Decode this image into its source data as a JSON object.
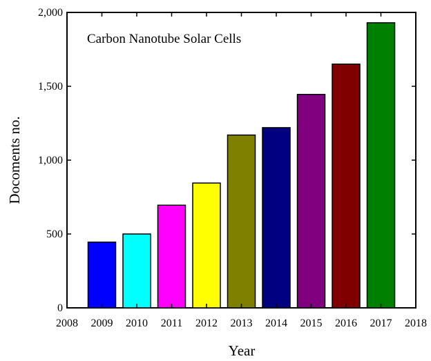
{
  "chart_data": {
    "type": "bar",
    "title": "Carbon Nanotube Solar Cells",
    "xlabel": "Year",
    "ylabel": "Docoments no.",
    "xlim": [
      2008,
      2018
    ],
    "ylim": [
      0,
      2000
    ],
    "x_ticks": [
      "2008",
      "2009",
      "2010",
      "2011",
      "2012",
      "2013",
      "2014",
      "2015",
      "2016",
      "2017",
      "2018"
    ],
    "y_ticks": [
      {
        "value": 0,
        "label": "0"
      },
      {
        "value": 500,
        "label": "500"
      },
      {
        "value": 1000,
        "label": "1,000"
      },
      {
        "value": 1500,
        "label": "1,500"
      },
      {
        "value": 2000,
        "label": "2,000"
      }
    ],
    "categories": [
      2009,
      2010,
      2011,
      2012,
      2013,
      2014,
      2015,
      2016,
      2017
    ],
    "values": [
      445,
      500,
      695,
      845,
      1170,
      1220,
      1445,
      1650,
      1930
    ],
    "colors": [
      "#0000ff",
      "#00ffff",
      "#ff00ff",
      "#ffff00",
      "#808000",
      "#000080",
      "#800080",
      "#800000",
      "#008000"
    ],
    "grid": false,
    "legend": "none"
  }
}
